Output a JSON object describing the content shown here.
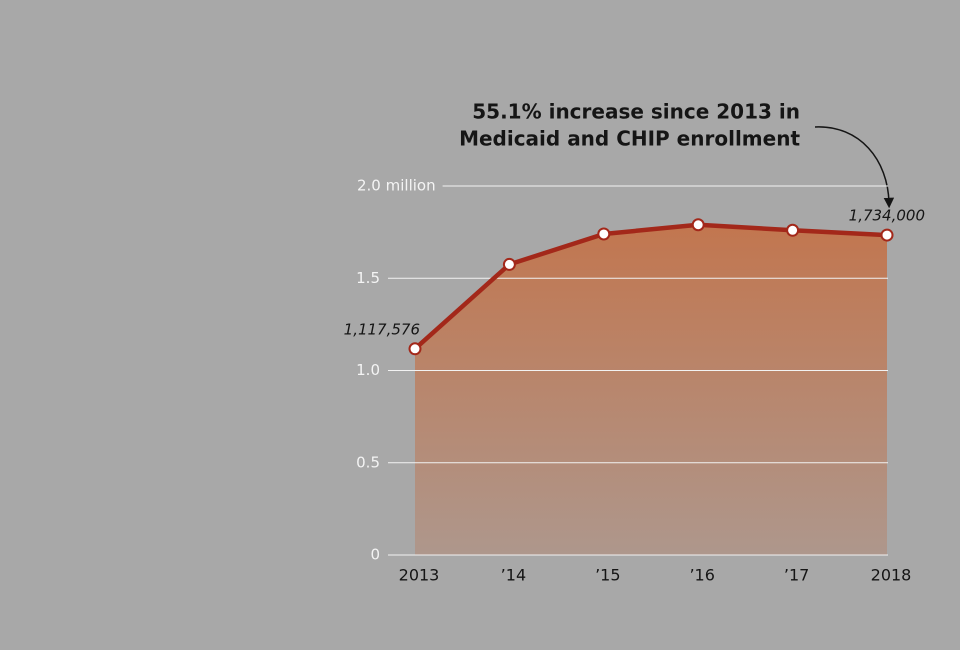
{
  "chart_data": {
    "type": "area",
    "annotation": [
      "55.1% increase since 2013 in",
      "Medicaid and CHIP enrollment"
    ],
    "categories": [
      "2013",
      "’14",
      "’15",
      "’16",
      "’17",
      "2018"
    ],
    "values": [
      1.117576,
      1.575,
      1.74,
      1.79,
      1.76,
      1.734
    ],
    "value_labels": [
      "1,117,576",
      null,
      null,
      null,
      null,
      "1,734,000"
    ],
    "color": "#a3281a",
    "ylim": [
      0,
      2.0
    ],
    "yticks": [
      0,
      0.5,
      {
        "value": 1.0,
        "label": "1.0"
      },
      1.5,
      {
        "value": 2.0,
        "label": "2.0 million"
      }
    ],
    "grid": true
  }
}
